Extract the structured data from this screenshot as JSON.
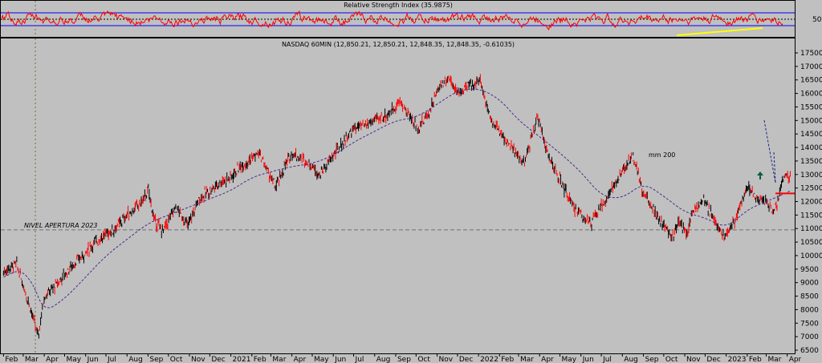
{
  "rsi_panel": {
    "title": "Relative Strength Index (35.9875)",
    "level_label": "50"
  },
  "main_panel": {
    "title": "NASDAQ 60MIN (12,850.21, 12,850.21, 12,848.35, 12,848.35, -0.61035)",
    "annotation_opening": "NIVEL APERTURA 2023",
    "annotation_ma": "mm 200"
  },
  "colors": {
    "background": "#c0c0c0",
    "rsi_line": "#ff0000",
    "rsi_band": "#0000ff",
    "candle_up": "#ff0000",
    "candle_down": "#000000",
    "moving_average": "#4b2a8c",
    "support_line": "#ffff00",
    "arrow": "#0a5c4a",
    "price_marker": "#ff0000"
  },
  "chart_data": {
    "type": "line",
    "title": "NASDAQ 60MIN (12,850.21, 12,850.21, 12,848.35, 12,848.35, -0.61035)",
    "xlabel": "",
    "ylabel": "",
    "ylim": [
      6500,
      17500
    ],
    "yticks": [
      6500,
      7000,
      7500,
      8000,
      8500,
      9000,
      9500,
      10000,
      10500,
      11000,
      11500,
      12000,
      12500,
      13000,
      13500,
      14000,
      14500,
      15000,
      15500,
      16000,
      16500,
      17000,
      17500
    ],
    "x_labels": [
      "Feb",
      "Mar",
      "Apr",
      "May",
      "Jun",
      "Jul",
      "Aug",
      "Sep",
      "Oct",
      "Nov",
      "Dec",
      "2021",
      "Feb",
      "Mar",
      "Apr",
      "May",
      "Jun",
      "Jul",
      "Aug",
      "Sep",
      "Oct",
      "Nov",
      "Dec",
      "2022",
      "Feb",
      "Mar",
      "Apr",
      "May",
      "Jun",
      "Jul",
      "Aug",
      "Sep",
      "Oct",
      "Nov",
      "Dec",
      "2023",
      "Feb",
      "Mar",
      "Apr"
    ],
    "reference_level": 10950,
    "last_price": 12300,
    "series": [
      {
        "name": "NASDAQ 60MIN",
        "x": [
          "2020-02-01",
          "2020-02-20",
          "2020-03-10",
          "2020-03-23",
          "2020-04-01",
          "2020-04-15",
          "2020-05-01",
          "2020-05-15",
          "2020-06-01",
          "2020-06-15",
          "2020-07-01",
          "2020-07-15",
          "2020-08-01",
          "2020-08-20",
          "2020-09-02",
          "2020-09-10",
          "2020-09-23",
          "2020-10-12",
          "2020-10-30",
          "2020-11-15",
          "2020-12-01",
          "2020-12-15",
          "2021-01-01",
          "2021-01-15",
          "2021-02-12",
          "2021-03-08",
          "2021-03-20",
          "2021-04-01",
          "2021-04-28",
          "2021-05-12",
          "2021-06-01",
          "2021-07-01",
          "2021-07-15",
          "2021-08-01",
          "2021-08-20",
          "2021-09-07",
          "2021-10-04",
          "2021-10-20",
          "2021-11-05",
          "2021-11-19",
          "2021-12-01",
          "2021-12-20",
          "2022-01-03",
          "2022-01-20",
          "2022-02-01",
          "2022-02-24",
          "2022-03-10",
          "2022-03-29",
          "2022-04-15",
          "2022-05-01",
          "2022-05-20",
          "2022-06-16",
          "2022-07-01",
          "2022-07-20",
          "2022-08-16",
          "2022-09-01",
          "2022-09-15",
          "2022-09-30",
          "2022-10-13",
          "2022-10-25",
          "2022-11-03",
          "2022-11-15",
          "2022-12-01",
          "2022-12-15",
          "2022-12-28",
          "2023-01-15",
          "2023-02-02",
          "2023-02-15",
          "2023-03-01",
          "2023-03-13",
          "2023-03-28",
          "2023-04-06"
        ],
        "values": [
          9400,
          9700,
          8200,
          7000,
          8500,
          8800,
          9300,
          9700,
          10100,
          10500,
          10800,
          11000,
          11500,
          11900,
          12400,
          11300,
          10900,
          11800,
          11100,
          12100,
          12400,
          12700,
          12900,
          13300,
          13800,
          12500,
          13200,
          13800,
          13400,
          13000,
          13700,
          14700,
          14800,
          15000,
          15200,
          15700,
          14700,
          15300,
          16300,
          16600,
          16000,
          16300,
          16500,
          15000,
          14600,
          13800,
          13400,
          15200,
          13600,
          12800,
          11800,
          11200,
          11800,
          12600,
          13700,
          12300,
          11800,
          11100,
          10700,
          11300,
          10800,
          11800,
          12000,
          11300,
          10700,
          11400,
          12600,
          12100,
          12000,
          11600,
          13000,
          12850
        ]
      },
      {
        "name": "mm 200",
        "x": [
          "2020-02-01",
          "2020-02-25",
          "2020-03-15",
          "2020-04-01",
          "2020-05-01",
          "2020-06-01",
          "2020-07-01",
          "2020-08-01",
          "2020-09-01",
          "2020-10-01",
          "2020-11-01",
          "2020-12-01",
          "2021-01-01",
          "2021-02-01",
          "2021-03-01",
          "2021-04-01",
          "2021-05-01",
          "2021-06-01",
          "2021-07-01",
          "2021-08-01",
          "2021-09-01",
          "2021-10-01",
          "2021-11-01",
          "2021-12-01",
          "2022-01-01",
          "2022-02-01",
          "2022-03-01",
          "2022-04-01",
          "2022-05-01",
          "2022-06-01",
          "2022-07-01",
          "2022-08-01",
          "2022-09-01",
          "2022-10-01",
          "2022-11-01",
          "2022-12-01",
          "2023-01-01",
          "2023-02-01",
          "2023-03-01",
          "2023-03-20",
          "2023-04-06"
        ],
        "values": [
          9200,
          9500,
          9000,
          7900,
          8400,
          9200,
          10000,
          10600,
          11200,
          11500,
          11800,
          12100,
          12400,
          12900,
          13100,
          13300,
          13400,
          13700,
          14200,
          14600,
          15000,
          15100,
          15600,
          16100,
          16200,
          15800,
          15000,
          14400,
          13800,
          13100,
          12200,
          12100,
          12700,
          12200,
          11600,
          11400,
          11000,
          11700,
          12000,
          12200,
          12400
        ]
      }
    ],
    "rsi": {
      "ylim": [
        0,
        100
      ],
      "bands": [
        30,
        70
      ],
      "level": 50,
      "last": 35.9875
    }
  }
}
